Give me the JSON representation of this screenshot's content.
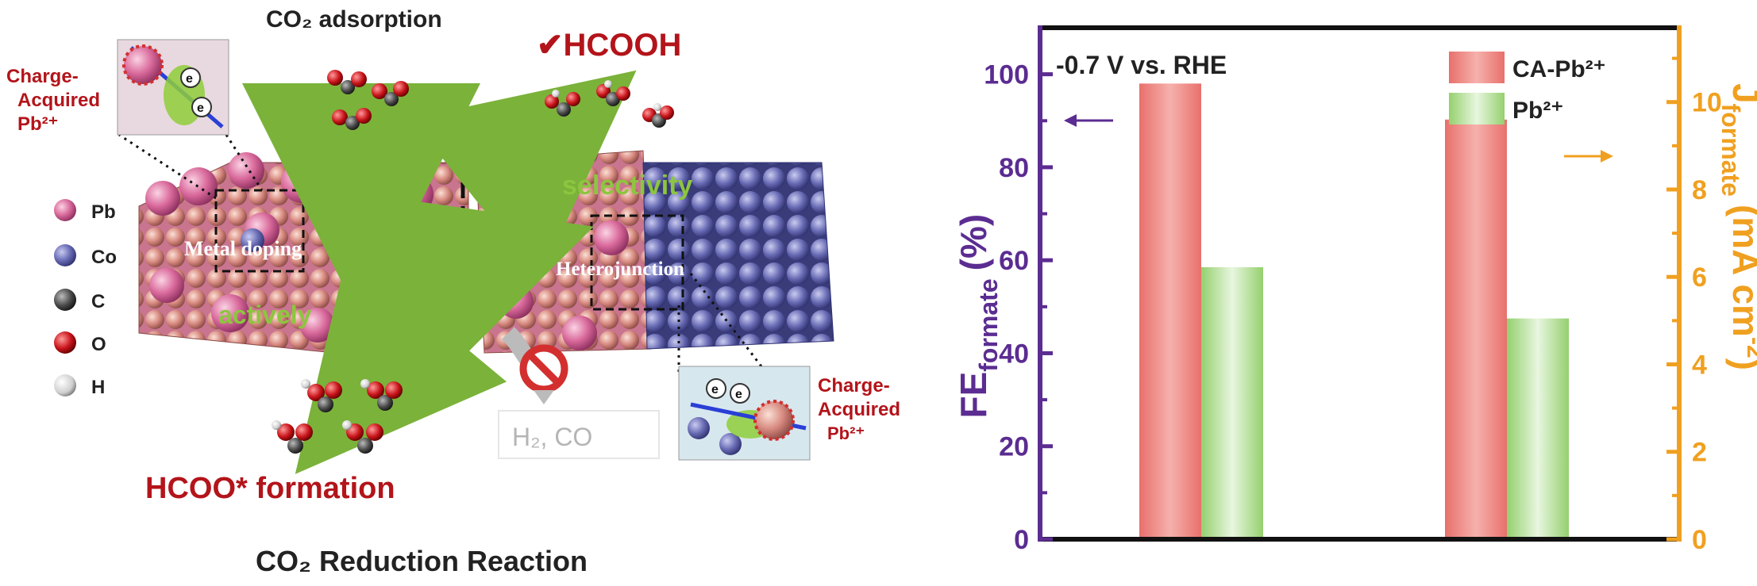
{
  "scheme": {
    "title": "CO₂ Reduction Reaction",
    "co2_adsorption": "CO₂ adsorption",
    "product": "✔HCOOH",
    "hcoo_formation": "HCOO* formation",
    "side_products": "H₂, CO",
    "selectivity": "selectivity",
    "actively": "actively",
    "metal_doping": "Metal doping",
    "heterojunction": "Heterojunction",
    "electron": "e⁻",
    "inset_electron": "e",
    "charge_acquired_line1": "Charge-",
    "charge_acquired_line2": "Acquired",
    "charge_acquired_line3": "Pb²⁺",
    "legend": [
      {
        "label": "Pb",
        "color": "#d9699b"
      },
      {
        "label": "Co",
        "color": "#7b7fc2"
      },
      {
        "label": "C",
        "color": "#555555"
      },
      {
        "label": "O",
        "color": "#c8141a"
      },
      {
        "label": "H",
        "color": "#cfcfcf"
      }
    ]
  },
  "chart_data": {
    "type": "bar",
    "annotation": "-0.7 V vs. RHE",
    "ylabel_left": "FE",
    "ylabel_left_sub": "formate",
    "ylabel_left_unit": "(%)",
    "ylabel_right": "J",
    "ylabel_right_sub": "formate",
    "ylabel_right_unit": "(mA cm",
    "ylabel_right_sup": "-2",
    "ylabel_right_close": ")",
    "ylim_left": [
      0,
      110
    ],
    "ylim_right": [
      0,
      11.7
    ],
    "yticks_left": [
      "0",
      "20",
      "40",
      "60",
      "80",
      "100"
    ],
    "yticks_right": [
      "0",
      "2",
      "4",
      "6",
      "8",
      "10"
    ],
    "legend_position": "top-right",
    "colors": {
      "left_axis": "#5b2c91",
      "right_axis": "#f0a020",
      "series1": "#f08a86",
      "series2": "#a8d98a"
    },
    "groups": [
      {
        "axis": "left",
        "values": [
          98,
          58.5
        ]
      },
      {
        "axis": "right",
        "values": [
          9.6,
          5.05
        ]
      }
    ],
    "series": [
      {
        "name": "CA-Pb²⁺"
      },
      {
        "name": "Pb²⁺"
      }
    ]
  }
}
